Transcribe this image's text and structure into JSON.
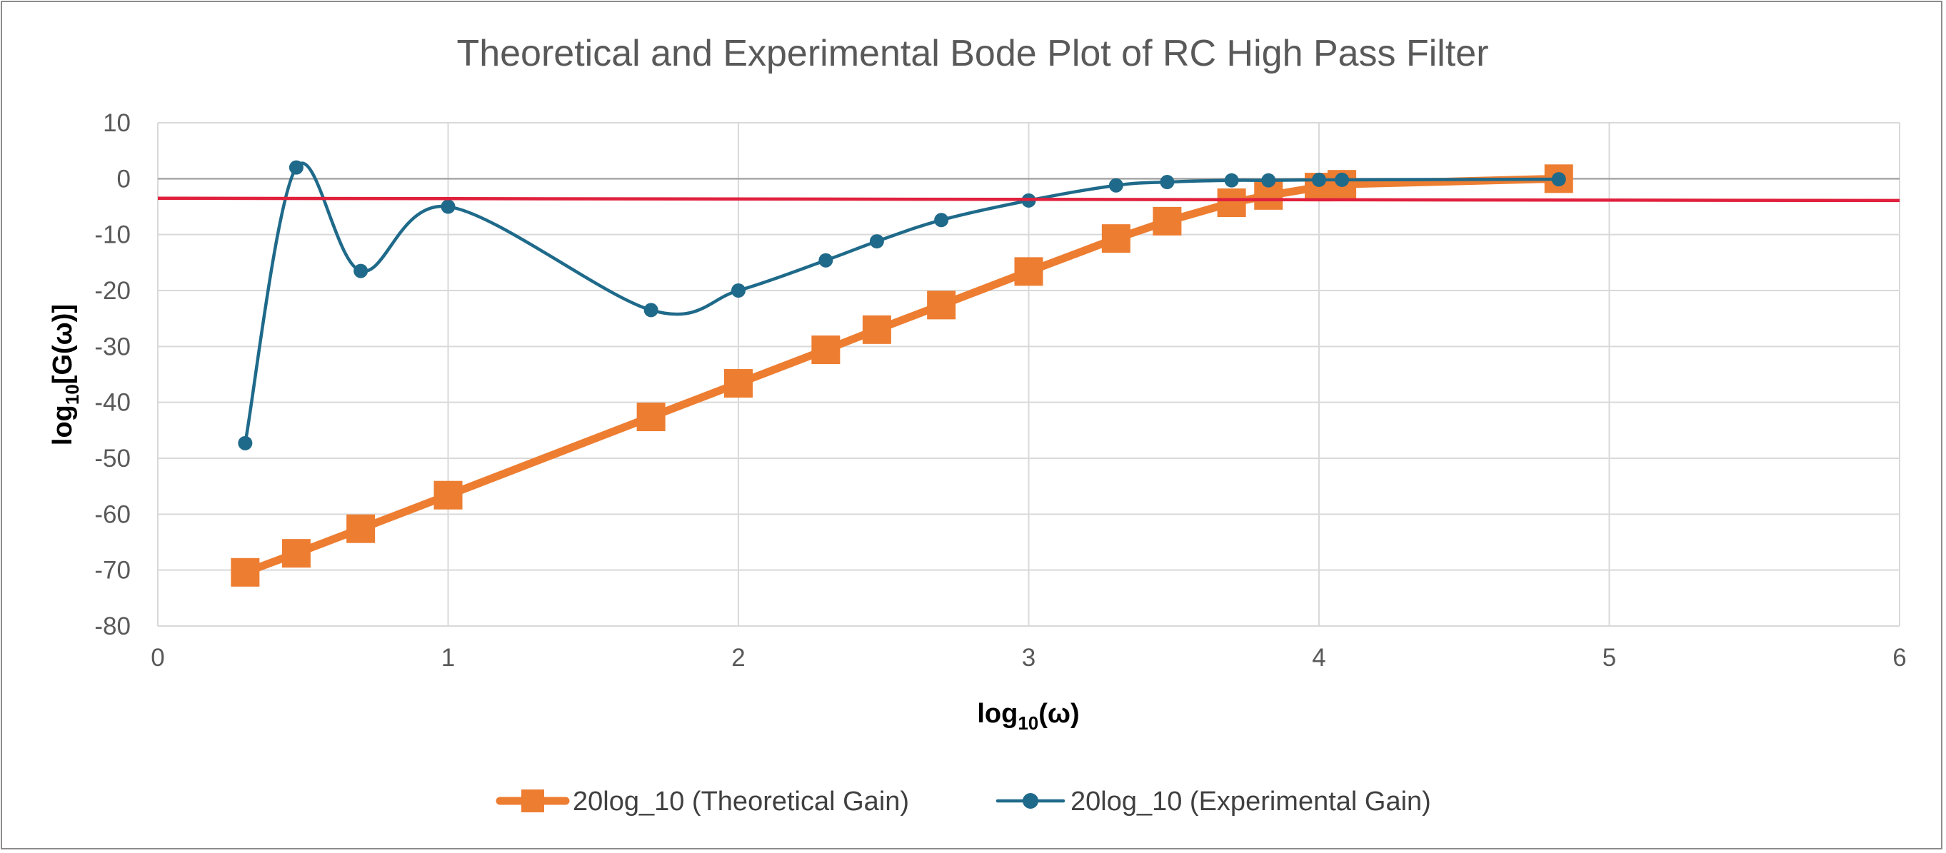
{
  "chart_data": {
    "type": "line",
    "title": "Theoretical and Experimental Bode Plot of RC High Pass Filter",
    "xlabel": {
      "main": "log",
      "sub": "10",
      "rest": "(ω)"
    },
    "ylabel": {
      "main": "log",
      "sub": "10",
      "rest": "[G(ω)]"
    },
    "xlim": [
      0,
      6
    ],
    "ylim": [
      -80,
      10
    ],
    "x_ticks": [
      0,
      1,
      2,
      3,
      4,
      5,
      6
    ],
    "y_ticks": [
      10,
      0,
      -10,
      -20,
      -30,
      -40,
      -50,
      -60,
      -70,
      -80
    ],
    "grid": true,
    "legend_position": "bottom",
    "series": [
      {
        "name": "20log_10 (Theoretical Gain)",
        "color": "#ED7D31",
        "marker": "square",
        "smooth": false,
        "x": [
          0.301,
          0.477,
          0.699,
          1.0,
          1.699,
          2.0,
          2.301,
          2.477,
          2.699,
          3.0,
          3.301,
          3.477,
          3.699,
          3.826,
          4.0,
          4.079,
          4.826
        ],
        "y": [
          -70.4,
          -67.0,
          -62.6,
          -56.6,
          -42.6,
          -36.6,
          -30.6,
          -27.0,
          -22.6,
          -16.6,
          -10.7,
          -7.6,
          -4.3,
          -3.0,
          -1.5,
          -1.0,
          0.0
        ]
      },
      {
        "name": "20log_10 (Experimental Gain)",
        "color": "#1F6A8A",
        "marker": "circle",
        "smooth": true,
        "x": [
          0.301,
          0.477,
          0.699,
          1.0,
          1.699,
          2.0,
          2.301,
          2.477,
          2.699,
          3.0,
          3.301,
          3.477,
          3.699,
          3.826,
          4.0,
          4.079,
          4.826
        ],
        "y": [
          -47.3,
          2.0,
          -16.5,
          -5.0,
          -23.5,
          -20.0,
          -14.6,
          -11.2,
          -7.4,
          -3.9,
          -1.2,
          -0.6,
          -0.3,
          -0.3,
          -0.2,
          -0.2,
          -0.1
        ]
      }
    ],
    "reference_line": {
      "color": "#E0203C",
      "x": [
        0,
        6
      ],
      "y": [
        -3.5,
        -3.9
      ]
    }
  }
}
